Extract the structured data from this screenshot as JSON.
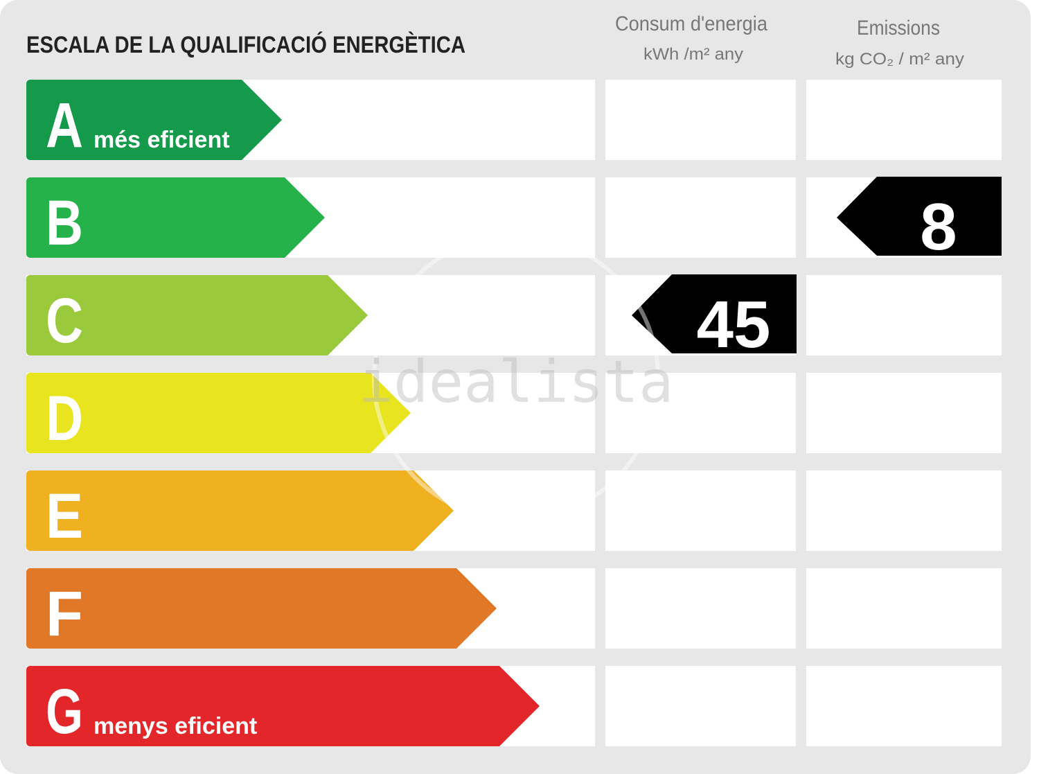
{
  "title": "ESCALA DE LA QUALIFICACIÓ ENERGÈTICA",
  "columns": [
    {
      "title": "Consum d'energia",
      "unit": "kWh /m² any"
    },
    {
      "title": "Emissions",
      "unit": "kg CO₂ / m² any"
    }
  ],
  "rows": [
    {
      "letter": "A",
      "label": "més eficient",
      "color": "#149a4a"
    },
    {
      "letter": "B",
      "color": "#26b24b",
      "emissions": 8
    },
    {
      "letter": "C",
      "color": "#9bc93c",
      "consumption": 45
    },
    {
      "letter": "D",
      "color": "#e8e520"
    },
    {
      "letter": "E",
      "color": "#efb11f"
    },
    {
      "letter": "F",
      "color": "#e07828"
    },
    {
      "letter": "G",
      "label": "menys eficient",
      "color": "#e3262a"
    }
  ],
  "watermark": "idealista"
}
